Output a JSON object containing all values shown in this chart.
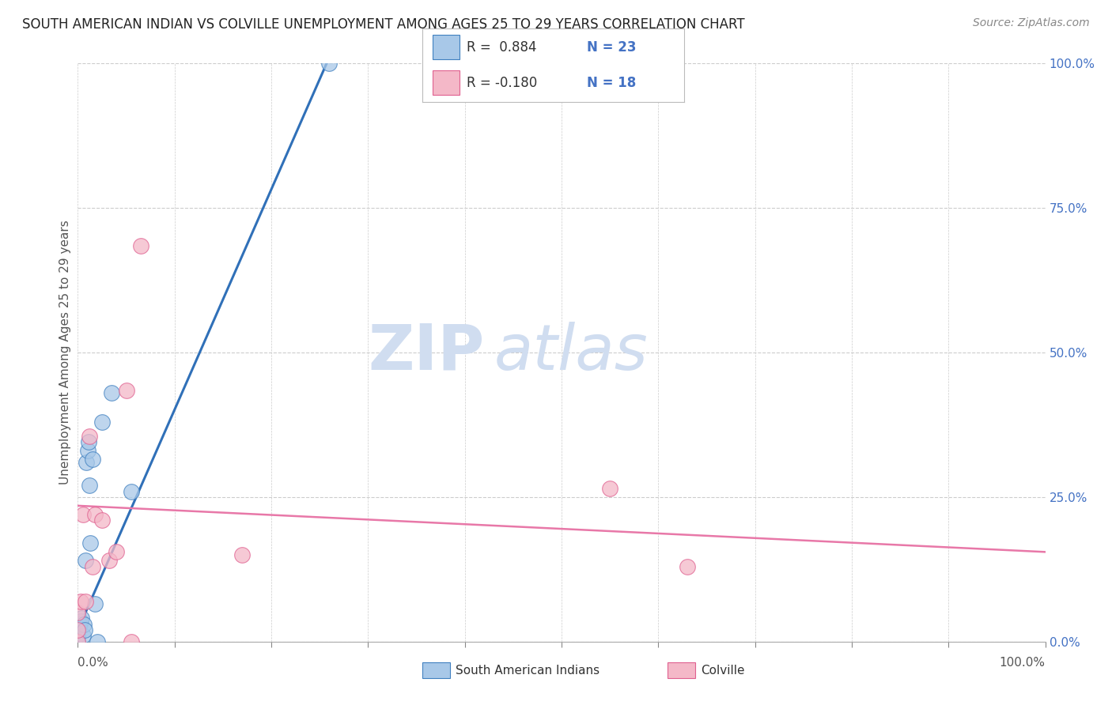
{
  "title": "SOUTH AMERICAN INDIAN VS COLVILLE UNEMPLOYMENT AMONG AGES 25 TO 29 YEARS CORRELATION CHART",
  "source": "Source: ZipAtlas.com",
  "ylabel_label": "Unemployment Among Ages 25 to 29 years",
  "legend_r1": "R =  0.884",
  "legend_n1": "N = 23",
  "legend_r2": "R = -0.180",
  "legend_n2": "N = 18",
  "blue_scatter_x": [
    0.0,
    0.0,
    0.0,
    0.0,
    0.002,
    0.003,
    0.004,
    0.005,
    0.006,
    0.007,
    0.008,
    0.009,
    0.01,
    0.011,
    0.012,
    0.013,
    0.015,
    0.018,
    0.02,
    0.025,
    0.035,
    0.055,
    0.26
  ],
  "blue_scatter_y": [
    0.0,
    0.005,
    0.01,
    0.02,
    0.03,
    0.035,
    0.04,
    0.01,
    0.03,
    0.02,
    0.14,
    0.31,
    0.33,
    0.345,
    0.27,
    0.17,
    0.315,
    0.065,
    0.0,
    0.38,
    0.43,
    0.26,
    1.0
  ],
  "pink_scatter_x": [
    0.0,
    0.0,
    0.0,
    0.003,
    0.005,
    0.008,
    0.012,
    0.015,
    0.018,
    0.025,
    0.032,
    0.04,
    0.05,
    0.055,
    0.065,
    0.17,
    0.55,
    0.63
  ],
  "pink_scatter_y": [
    0.0,
    0.02,
    0.05,
    0.07,
    0.22,
    0.07,
    0.355,
    0.13,
    0.22,
    0.21,
    0.14,
    0.155,
    0.435,
    0.0,
    0.685,
    0.15,
    0.265,
    0.13
  ],
  "blue_line_x": [
    0.0,
    0.265
  ],
  "blue_line_y": [
    0.02,
    1.03
  ],
  "pink_line_x": [
    0.0,
    1.0
  ],
  "pink_line_y": [
    0.235,
    0.155
  ],
  "blue_color": "#a8c8e8",
  "pink_color": "#f4b8c8",
  "blue_edge_color": "#4080c0",
  "pink_edge_color": "#e06090",
  "blue_line_color": "#3070b8",
  "pink_line_color": "#e878a8",
  "watermark_zip": "ZIP",
  "watermark_atlas": "atlas",
  "watermark_color": "#d0ddf0",
  "background_color": "#ffffff",
  "grid_color": "#cccccc",
  "tick_color": "#888888",
  "right_label_color": "#4472c4",
  "xlim": [
    0.0,
    1.0
  ],
  "ylim": [
    0.0,
    1.0
  ],
  "yticks": [
    0.0,
    0.25,
    0.5,
    0.75,
    1.0
  ],
  "ytick_labels": [
    "0.0%",
    "25.0%",
    "50.0%",
    "75.0%",
    "100.0%"
  ],
  "xtick_minor": [
    0.1,
    0.2,
    0.3,
    0.4,
    0.5,
    0.6,
    0.7,
    0.8,
    0.9
  ]
}
